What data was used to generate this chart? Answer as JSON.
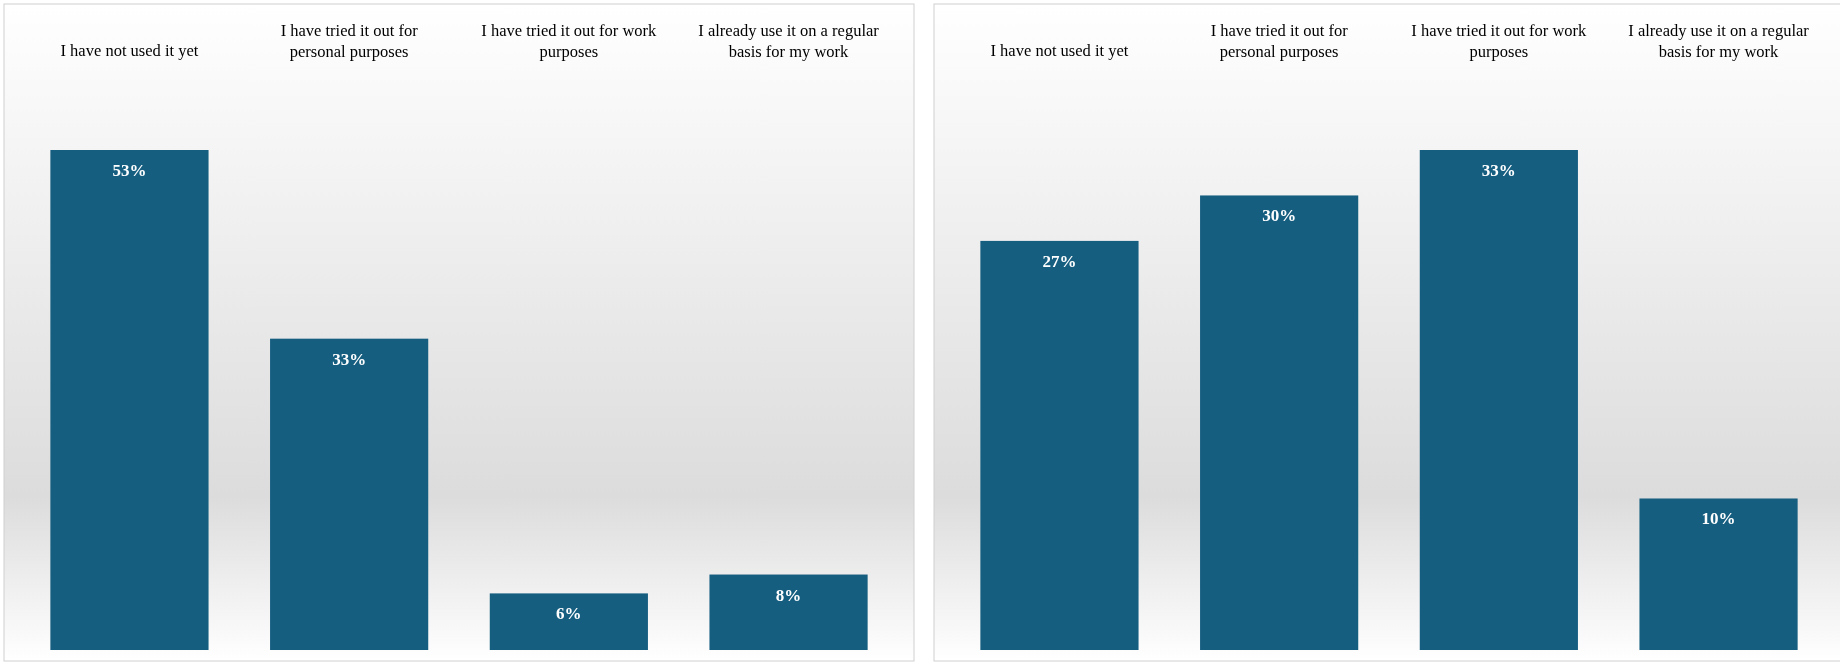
{
  "chart_data": [
    {
      "type": "bar",
      "categories": [
        "I have not used it yet",
        "I have tried it out for personal purposes",
        "I have tried it out for work purposes",
        "I already use it on a regular basis for my work"
      ],
      "values": [
        53,
        33,
        6,
        8
      ],
      "value_labels": [
        "53%",
        "33%",
        "6%",
        "8%"
      ],
      "color": "#155e80"
    },
    {
      "type": "bar",
      "categories": [
        "I have not used it yet",
        "I have tried it out for personal purposes",
        "I have tried it out for work purposes",
        "I already use it on a regular basis for my work"
      ],
      "values": [
        27,
        30,
        33,
        10
      ],
      "value_labels": [
        "27%",
        "30%",
        "33%",
        "10%"
      ],
      "color": "#155e80"
    }
  ]
}
